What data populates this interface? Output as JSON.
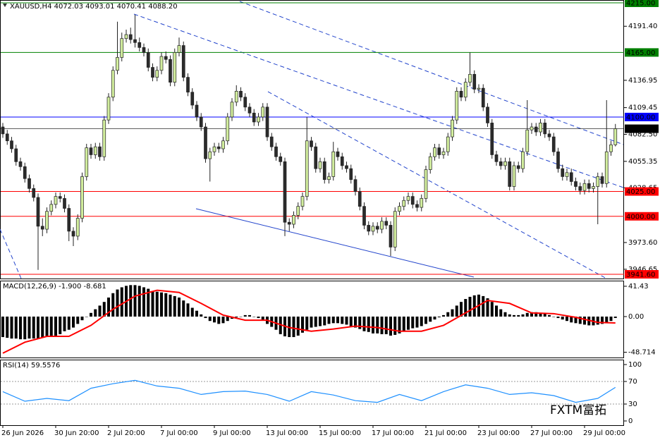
{
  "chart_data": [
    {
      "type": "candlestick",
      "title": "XAUUSD,H4 4072.03 4093.01 4070.41 4088.20",
      "up_color": "#d2ee9e",
      "down_color": "#2b2b2b",
      "wick_color": "#222222",
      "ylim": [
        3937.34,
        4217.84
      ],
      "yticks": [
        {
          "value": 4191.4,
          "label": "4191.40"
        },
        {
          "value": 4136.95,
          "label": "4136.95"
        },
        {
          "value": 4109.45,
          "label": "4109.45"
        },
        {
          "value": 4082.5,
          "label": "4082.50"
        },
        {
          "value": 4055.35,
          "label": "4055.35"
        },
        {
          "value": 4028.65,
          "label": "4028.65"
        },
        {
          "value": 3973.6,
          "label": "3973.60"
        },
        {
          "value": 3946.65,
          "label": "3946.65"
        }
      ],
      "levels": [
        {
          "value": 4215,
          "label": "4215.00",
          "color": "#008000"
        },
        {
          "value": 4165,
          "label": "4165.00",
          "color": "#008000"
        },
        {
          "value": 4100,
          "label": "4100.00",
          "color": "#0000ff"
        },
        {
          "value": 4088.2,
          "label": "4088.20",
          "color": "#000000"
        },
        {
          "value": 4025,
          "label": "4025.00",
          "color": "#ff0000"
        },
        {
          "value": 4000,
          "label": "4000.00",
          "color": "#ff0000"
        },
        {
          "value": 3941.6,
          "label": "3941.60",
          "color": "#ff0000"
        }
      ],
      "x_labels": [
        "26 Jun 2026",
        "30 Jun 20:00",
        "2 Jul 20:00",
        "7 Jul 00:00",
        "9 Jul 00:00",
        "13 Jul 00:00",
        "15 Jul 00:00",
        "17 Jul 00:00",
        "21 Jul 00:00",
        "23 Jul 00:00",
        "27 Jul 00:00",
        "29 Jul 00:00"
      ],
      "ohlc": [
        [
          4090,
          4094,
          4079,
          4083
        ],
        [
          4083,
          4087,
          4072,
          4076
        ],
        [
          4076,
          4080,
          4064,
          4068
        ],
        [
          4068,
          4072,
          4051,
          4055
        ],
        [
          4055,
          4059,
          4046,
          4050
        ],
        [
          4050,
          4054,
          4034,
          4038
        ],
        [
          4038,
          4042,
          4024,
          4028
        ],
        [
          4028,
          4032,
          4015,
          4019
        ],
        [
          4019,
          4023,
          3946,
          3990
        ],
        [
          3990,
          3998,
          3980,
          3987
        ],
        [
          3987,
          4009,
          3983,
          4005
        ],
        [
          4005,
          4016,
          4001,
          4012
        ],
        [
          4012,
          4024,
          4008,
          4020
        ],
        [
          4020,
          4024,
          4014,
          4018
        ],
        [
          4018,
          4022,
          4004,
          4008
        ],
        [
          4008,
          4012,
          3975,
          3985
        ],
        [
          3985,
          3989,
          3970,
          3980
        ],
        [
          3980,
          4002,
          3976,
          3998
        ],
        [
          3998,
          4044,
          3994,
          4040
        ],
        [
          4040,
          4073,
          4036,
          4069
        ],
        [
          4069,
          4073,
          4058,
          4062
        ],
        [
          4062,
          4074,
          4058,
          4070
        ],
        [
          4070,
          4074,
          4056,
          4060
        ],
        [
          4060,
          4101,
          4056,
          4097
        ],
        [
          4097,
          4124,
          4093,
          4120
        ],
        [
          4120,
          4151,
          4116,
          4147
        ],
        [
          4147,
          4196,
          4143,
          4160
        ],
        [
          4160,
          4185,
          4156,
          4179
        ],
        [
          4179,
          4188,
          4175,
          4183
        ],
        [
          4183,
          4190,
          4174,
          4178
        ],
        [
          4178,
          4203,
          4170,
          4175
        ],
        [
          4175,
          4180,
          4166,
          4170
        ],
        [
          4170,
          4174,
          4161,
          4165
        ],
        [
          4165,
          4169,
          4146,
          4150
        ],
        [
          4150,
          4154,
          4136,
          4140
        ],
        [
          4140,
          4151,
          4136,
          4147
        ],
        [
          4147,
          4165,
          4143,
          4161
        ],
        [
          4161,
          4166,
          4154,
          4158
        ],
        [
          4158,
          4162,
          4131,
          4135
        ],
        [
          4135,
          4169,
          4131,
          4165
        ],
        [
          4165,
          4180,
          4161,
          4172
        ],
        [
          4172,
          4176,
          4136,
          4140
        ],
        [
          4140,
          4144,
          4121,
          4125
        ],
        [
          4125,
          4129,
          4108,
          4112
        ],
        [
          4112,
          4116,
          4096,
          4100
        ],
        [
          4100,
          4104,
          4086,
          4090
        ],
        [
          4090,
          4094,
          4054,
          4058
        ],
        [
          4058,
          4069,
          4035,
          4065
        ],
        [
          4065,
          4074,
          4061,
          4070
        ],
        [
          4070,
          4074,
          4064,
          4068
        ],
        [
          4068,
          4080,
          4064,
          4076
        ],
        [
          4076,
          4104,
          4072,
          4100
        ],
        [
          4100,
          4119,
          4096,
          4115
        ],
        [
          4115,
          4132,
          4111,
          4126
        ],
        [
          4126,
          4130,
          4116,
          4120
        ],
        [
          4120,
          4124,
          4106,
          4110
        ],
        [
          4110,
          4114,
          4100,
          4104
        ],
        [
          4104,
          4108,
          4091,
          4095
        ],
        [
          4095,
          4104,
          4091,
          4100
        ],
        [
          4100,
          4114,
          4096,
          4110
        ],
        [
          4110,
          4114,
          4076,
          4080
        ],
        [
          4080,
          4084,
          4066,
          4070
        ],
        [
          4070,
          4074,
          4056,
          4060
        ],
        [
          4060,
          4064,
          4051,
          4055
        ],
        [
          4055,
          4059,
          3980,
          3994
        ],
        [
          3994,
          3998,
          3985,
          3992
        ],
        [
          3992,
          4005,
          3988,
          4001
        ],
        [
          4001,
          4014,
          3997,
          4010
        ],
        [
          4010,
          4024,
          4006,
          4020
        ],
        [
          4020,
          4100,
          4016,
          4076
        ],
        [
          4076,
          4080,
          4066,
          4070
        ],
        [
          4070,
          4074,
          4044,
          4048
        ],
        [
          4048,
          4059,
          4044,
          4055
        ],
        [
          4055,
          4059,
          4033,
          4037
        ],
        [
          4037,
          4044,
          4033,
          4040
        ],
        [
          4040,
          4075,
          4036,
          4065
        ],
        [
          4065,
          4069,
          4056,
          4060
        ],
        [
          4060,
          4064,
          4047,
          4051
        ],
        [
          4051,
          4055,
          4044,
          4048
        ],
        [
          4048,
          4052,
          4033,
          4037
        ],
        [
          4037,
          4041,
          4021,
          4025
        ],
        [
          4025,
          4029,
          4006,
          4010
        ],
        [
          4010,
          4014,
          3987,
          3991
        ],
        [
          3991,
          3995,
          3981,
          3985
        ],
        [
          3985,
          3994,
          3981,
          3990
        ],
        [
          3990,
          3994,
          3983,
          3987
        ],
        [
          3987,
          3999,
          3983,
          3995
        ],
        [
          3995,
          3999,
          3987,
          3991
        ],
        [
          3991,
          3995,
          3960,
          3969
        ],
        [
          3969,
          4009,
          3965,
          4005
        ],
        [
          4005,
          4014,
          4001,
          4010
        ],
        [
          4010,
          4020,
          4006,
          4016
        ],
        [
          4016,
          4024,
          4012,
          4020
        ],
        [
          4020,
          4024,
          4008,
          4012
        ],
        [
          4012,
          4016,
          4005,
          4009
        ],
        [
          4009,
          4022,
          4005,
          4018
        ],
        [
          4018,
          4051,
          4014,
          4047
        ],
        [
          4047,
          4064,
          4043,
          4060
        ],
        [
          4060,
          4073,
          4056,
          4069
        ],
        [
          4069,
          4073,
          4058,
          4062
        ],
        [
          4062,
          4069,
          4058,
          4065
        ],
        [
          4065,
          4084,
          4061,
          4080
        ],
        [
          4080,
          4101,
          4076,
          4097
        ],
        [
          4097,
          4130,
          4093,
          4126
        ],
        [
          4126,
          4130,
          4116,
          4120
        ],
        [
          4120,
          4139,
          4116,
          4135
        ],
        [
          4135,
          4165,
          4131,
          4143
        ],
        [
          4143,
          4147,
          4124,
          4128
        ],
        [
          4128,
          4133,
          4124,
          4129
        ],
        [
          4129,
          4133,
          4106,
          4110
        ],
        [
          4110,
          4114,
          4090,
          4094
        ],
        [
          4094,
          4098,
          4058,
          4062
        ],
        [
          4062,
          4066,
          4051,
          4055
        ],
        [
          4055,
          4059,
          4047,
          4051
        ],
        [
          4051,
          4059,
          4047,
          4055
        ],
        [
          4055,
          4059,
          4026,
          4030
        ],
        [
          4030,
          4055,
          4026,
          4051
        ],
        [
          4051,
          4055,
          4044,
          4048
        ],
        [
          4048,
          4069,
          4044,
          4065
        ],
        [
          4065,
          4117,
          4061,
          4087
        ],
        [
          4087,
          4094,
          4083,
          4090
        ],
        [
          4090,
          4094,
          4081,
          4085
        ],
        [
          4085,
          4098,
          4081,
          4094
        ],
        [
          4094,
          4098,
          4079,
          4083
        ],
        [
          4083,
          4087,
          4076,
          4080
        ],
        [
          4080,
          4084,
          4061,
          4065
        ],
        [
          4065,
          4069,
          4044,
          4048
        ],
        [
          4048,
          4052,
          4036,
          4040
        ],
        [
          4040,
          4048,
          4036,
          4044
        ],
        [
          4044,
          4048,
          4031,
          4035
        ],
        [
          4035,
          4039,
          4026,
          4030
        ],
        [
          4030,
          4034,
          4022,
          4026
        ],
        [
          4026,
          4037,
          4022,
          4033
        ],
        [
          4033,
          4037,
          4024,
          4028
        ],
        [
          4028,
          4034,
          4024,
          4030
        ],
        [
          4030,
          4044,
          3992,
          4040
        ],
        [
          4040,
          4044,
          4029,
          4033
        ],
        [
          4033,
          4117,
          4029,
          4065
        ],
        [
          4065,
          4076,
          4061,
          4072.03
        ],
        [
          4072.03,
          4093.01,
          4070.41,
          4088.2
        ]
      ]
    },
    {
      "type": "macd",
      "title": "MACD(12,26,9) -1.900 -8.681",
      "ylim": [
        -55.9,
        49.1
      ],
      "yticks": [
        41.43,
        {
          "value": 0,
          "label": "0.00"
        },
        -48.714
      ],
      "histogram": {
        "color": "#000000",
        "values": [
          -28,
          -29,
          -30,
          -30,
          -31,
          -31,
          -30,
          -30,
          -30,
          -29,
          -28,
          -27,
          -26,
          -24,
          -20,
          -18,
          -15,
          -10,
          -5,
          0,
          5,
          10,
          15,
          20,
          26,
          32,
          37,
          40,
          42,
          43,
          43,
          42,
          40,
          38,
          35,
          34,
          33,
          32,
          30,
          28,
          26,
          22,
          18,
          12,
          8,
          3,
          -2,
          -6,
          -8,
          -10,
          -9,
          -6,
          -3,
          -1,
          0,
          2,
          2,
          0,
          -2,
          -5,
          -10,
          -14,
          -18,
          -24,
          -27,
          -28,
          -28,
          -26,
          -22,
          -18,
          -15,
          -14,
          -13,
          -12,
          -10,
          -9,
          -9,
          -10,
          -11,
          -13,
          -15,
          -17,
          -20,
          -21,
          -23,
          -23,
          -24,
          -24,
          -26,
          -25,
          -23,
          -20,
          -18,
          -16,
          -15,
          -13,
          -10,
          -7,
          -4,
          -1,
          2,
          6,
          10,
          15,
          20,
          24,
          27,
          29,
          30,
          28,
          25,
          20,
          15,
          10,
          6,
          3,
          2,
          2,
          3,
          5,
          6,
          6,
          5,
          4,
          2,
          0,
          -2,
          -4,
          -6,
          -8,
          -9,
          -10,
          -11,
          -12,
          -12,
          -11,
          -10,
          -9,
          -6,
          -1.9
        ]
      },
      "signal": {
        "color": "#ff0000",
        "x": [
          0,
          5,
          10,
          15,
          20,
          25,
          30,
          35,
          40,
          45,
          50,
          55,
          60,
          65,
          70,
          75,
          80,
          85,
          90,
          95,
          100,
          105,
          110,
          115,
          120,
          125,
          130,
          135,
          139
        ],
        "values": [
          -50,
          -35,
          -27,
          -27,
          -12,
          10,
          28,
          36,
          33,
          18,
          2,
          -5,
          -5,
          -15,
          -20,
          -17,
          -13,
          -15,
          -20,
          -20,
          -12,
          5,
          22,
          18,
          5,
          4,
          -1,
          -8,
          -8.681
        ]
      }
    },
    {
      "type": "rsi",
      "title": "RSI(14) 59.5576",
      "ylim": [
        -7.5,
        108.75
      ],
      "yticks": [
        100,
        70,
        30,
        0
      ],
      "levels": [
        70,
        30
      ],
      "line": {
        "color": "#1e90ff",
        "x": [
          0,
          5,
          10,
          15,
          20,
          25,
          30,
          35,
          40,
          45,
          50,
          55,
          60,
          65,
          70,
          75,
          80,
          85,
          90,
          95,
          100,
          105,
          110,
          115,
          120,
          125,
          130,
          135,
          139
        ],
        "values": [
          52,
          35,
          40,
          36,
          58,
          66,
          72,
          62,
          58,
          47,
          52,
          53,
          47,
          35,
          52,
          46,
          36,
          33,
          47,
          36,
          52,
          64,
          58,
          47,
          50,
          45,
          33,
          40,
          59.5576
        ]
      }
    }
  ],
  "watermark": "FXTM富拓"
}
